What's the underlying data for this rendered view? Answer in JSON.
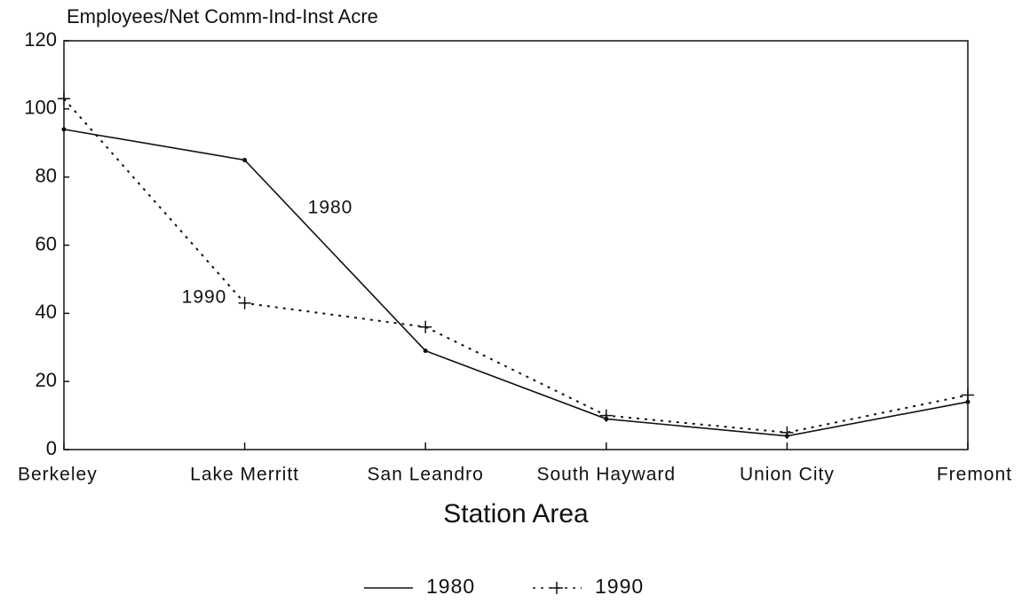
{
  "chart_data": {
    "type": "line",
    "ylabel": "Employees/Net Comm-Ind-Inst Acre",
    "xlabel": "Station Area",
    "categories": [
      "Berkeley",
      "Lake Merritt",
      "San Leandro",
      "South Hayward",
      "Union City",
      "Fremont"
    ],
    "series": [
      {
        "name": "1980",
        "color": "#111111",
        "style": "solid",
        "marker": "dot",
        "values": [
          94,
          85,
          29,
          9,
          4,
          14
        ]
      },
      {
        "name": "1990",
        "color": "#111111",
        "style": "dotted",
        "marker": "plus",
        "values": [
          103,
          43,
          36,
          10,
          5,
          16
        ]
      }
    ],
    "annotations": [
      "1980",
      "1990"
    ],
    "ylim": [
      0,
      120
    ],
    "yticks": [
      0,
      20,
      40,
      60,
      80,
      100,
      120
    ],
    "grid": false,
    "legend": "bottom"
  }
}
